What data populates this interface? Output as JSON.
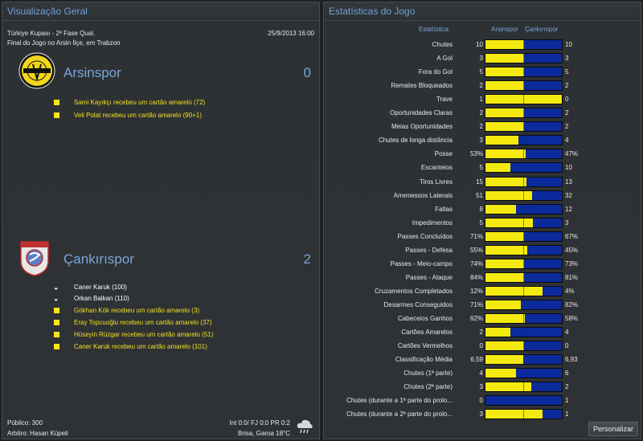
{
  "left_panel": {
    "title": "Visualização Geral",
    "competition": "Türkiye Kupası - 2ª Fase Qual.",
    "datetime": "25/9/2013 16:00",
    "venue": "Final do Jogo no Arsin İlçe, em Trabzon",
    "home": {
      "name": "Arsinspor",
      "score": "0",
      "logo_text": "ARSİNSPOR",
      "events": [
        {
          "type": "card",
          "text": "Sami Kayıkçı recebeu um cartão amarelo (72)"
        },
        {
          "type": "card",
          "text": "Veli Polat recebeu um cartão amarelo (90+1)"
        }
      ]
    },
    "away": {
      "name": "Çankırıspor",
      "score": "2",
      "logo_text": "ÇANKIRI",
      "events": [
        {
          "type": "goal",
          "text": "Caner Karuk (100)"
        },
        {
          "type": "goal",
          "text": "Orkan Balkan (110)"
        },
        {
          "type": "card",
          "text": "Gökhan Kök recebeu um cartão amarelo (3)"
        },
        {
          "type": "card",
          "text": "Eray Topcuoğlu recebeu um cartão amarelo (37)"
        },
        {
          "type": "card",
          "text": "Hüseyin Rüzgar recebeu um cartão amarelo (51)"
        },
        {
          "type": "card",
          "text": "Caner Karuk recebeu um cartão amarelo (101)"
        }
      ]
    },
    "footer": {
      "attendance": "Público: 300",
      "referee": "Arbitro: Hasan Küpeli",
      "ratings": "Int 0:0/ FJ 0:0 PR 0:2",
      "weather": "Brisa, Garoa 18°C"
    }
  },
  "right_panel": {
    "title": "Estatísticas do Jogo",
    "col_stat": "Estatística",
    "col_home": "Arsinspor",
    "col_away": "Çankırıspor",
    "button": "Personalizar",
    "stats": [
      {
        "label": "Chutes",
        "home": "10",
        "away": "10",
        "share": 0.5
      },
      {
        "label": "A Gol",
        "home": "3",
        "away": "3",
        "share": 0.5
      },
      {
        "label": "Fora do Gol",
        "home": "5",
        "away": "5",
        "share": 0.5
      },
      {
        "label": "Remates Bloqueados",
        "home": "2",
        "away": "2",
        "share": 0.5
      },
      {
        "label": "Trave",
        "home": "1",
        "away": "0",
        "share": 1.0
      },
      {
        "label": "Oportunidades Claras",
        "home": "2",
        "away": "2",
        "share": 0.5
      },
      {
        "label": "Meias Oportunidades",
        "home": "2",
        "away": "2",
        "share": 0.5
      },
      {
        "label": "Chutes de longa distância",
        "home": "3",
        "away": "4",
        "share": 0.43
      },
      {
        "label": "Posse",
        "home": "53%",
        "away": "47%",
        "share": 0.53
      },
      {
        "label": "Escanteios",
        "home": "5",
        "away": "10",
        "share": 0.33
      },
      {
        "label": "Tiros Livres",
        "home": "15",
        "away": "13",
        "share": 0.54
      },
      {
        "label": "Arremessos Laterais",
        "home": "51",
        "away": "32",
        "share": 0.61
      },
      {
        "label": "Faltas",
        "home": "8",
        "away": "12",
        "share": 0.4
      },
      {
        "label": "Impedimentos",
        "home": "5",
        "away": "3",
        "share": 0.62
      },
      {
        "label": "Passes Concluídos",
        "home": "71%",
        "away": "67%",
        "share": 0.51
      },
      {
        "label": "Passes - Defesa",
        "home": "55%",
        "away": "45%",
        "share": 0.55
      },
      {
        "label": "Passes - Meio-campo",
        "home": "74%",
        "away": "73%",
        "share": 0.5
      },
      {
        "label": "Passes - Ataque",
        "home": "84%",
        "away": "81%",
        "share": 0.51
      },
      {
        "label": "Cruzamentos Completados",
        "home": "12%",
        "away": "4%",
        "share": 0.75
      },
      {
        "label": "Desarmes Conseguidos",
        "home": "71%",
        "away": "82%",
        "share": 0.46
      },
      {
        "label": "Cabeceios Ganhos",
        "home": "62%",
        "away": "58%",
        "share": 0.52
      },
      {
        "label": "Cartões Amarelos",
        "home": "2",
        "away": "4",
        "share": 0.33
      },
      {
        "label": "Cartões Vermelhos",
        "home": "0",
        "away": "0",
        "share": 0.5
      },
      {
        "label": "Classificação Média",
        "home": "6,59",
        "away": "6,93",
        "share": 0.49
      },
      {
        "label": "Chutes (1ª parte)",
        "home": "4",
        "away": "6",
        "share": 0.4
      },
      {
        "label": "Chutes (2ª parte)",
        "home": "3",
        "away": "2",
        "share": 0.6
      },
      {
        "label": "Chutes (durante a 1ª parte do prolo...",
        "home": "0",
        "away": "1",
        "share": 0.0
      },
      {
        "label": "Chutes (durante a 2ª parte do prolo...",
        "home": "3",
        "away": "1",
        "share": 0.75
      }
    ]
  },
  "colors": {
    "home_bar": "#f4ea10",
    "away_bar": "#0b2a9c",
    "accent": "#79a6dc",
    "card": "#f5e61a"
  },
  "icons": {
    "card": "yellow-card-icon",
    "goal": "ball-icon",
    "weather": "cloud-rain-icon"
  }
}
